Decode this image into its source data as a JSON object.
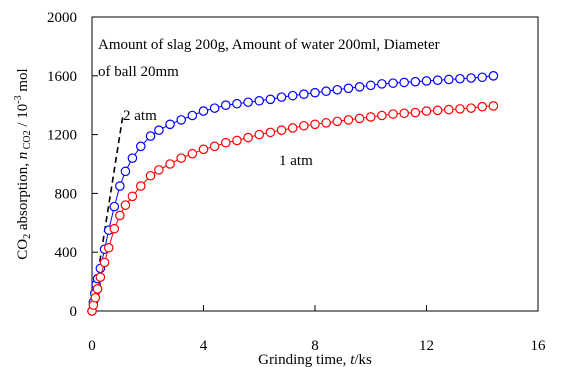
{
  "chart_data": {
    "type": "line",
    "title": "",
    "xlabel": "Grinding time, t/ks",
    "ylabel": "CO2 absorption, n CO2 / 10^-3 mol",
    "xlim": [
      0,
      16
    ],
    "ylim": [
      0,
      2000
    ],
    "x_ticks": [
      "0",
      "4",
      "8",
      "12",
      "16"
    ],
    "y_ticks": [
      "0",
      "400",
      "800",
      "1200",
      "1600",
      "2000"
    ],
    "grid": false,
    "annotations": {
      "conditions_line1": "Amount of slag 200g, Amount of water 200ml, Diameter",
      "conditions_line2": "of ball 20mm",
      "label_2atm": "2 atm",
      "label_1atm": "1 atm"
    },
    "series": [
      {
        "name": "2 atm",
        "color": "#0000ff",
        "x": [
          0,
          0.05,
          0.1,
          0.15,
          0.2,
          0.3,
          0.45,
          0.6,
          0.8,
          1.0,
          1.2,
          1.45,
          1.75,
          2.1,
          2.4,
          2.8,
          3.2,
          3.6,
          4.0,
          4.4,
          4.8,
          5.2,
          5.6,
          6.0,
          6.4,
          6.8,
          7.2,
          7.6,
          8.0,
          8.4,
          8.8,
          9.2,
          9.6,
          10.0,
          10.4,
          10.8,
          11.2,
          11.6,
          12.0,
          12.4,
          12.8,
          13.2,
          13.6,
          14.0,
          14.4
        ],
        "y": [
          0,
          60,
          120,
          180,
          220,
          290,
          420,
          550,
          710,
          850,
          950,
          1040,
          1120,
          1190,
          1230,
          1270,
          1300,
          1330,
          1360,
          1380,
          1400,
          1410,
          1420,
          1430,
          1440,
          1455,
          1465,
          1475,
          1485,
          1495,
          1505,
          1515,
          1525,
          1535,
          1545,
          1550,
          1555,
          1560,
          1565,
          1570,
          1575,
          1580,
          1585,
          1590,
          1600
        ]
      },
      {
        "name": "1 atm",
        "color": "#ff0000",
        "x": [
          0,
          0.05,
          0.12,
          0.2,
          0.3,
          0.45,
          0.6,
          0.8,
          1.0,
          1.2,
          1.45,
          1.75,
          2.1,
          2.4,
          2.8,
          3.2,
          3.6,
          4.0,
          4.4,
          4.8,
          5.2,
          5.6,
          6.0,
          6.4,
          6.8,
          7.2,
          7.6,
          8.0,
          8.4,
          8.8,
          9.2,
          9.6,
          10.0,
          10.4,
          10.8,
          11.2,
          11.6,
          12.0,
          12.4,
          12.8,
          13.2,
          13.6,
          14.0,
          14.4
        ],
        "y": [
          0,
          40,
          90,
          150,
          230,
          330,
          430,
          560,
          650,
          720,
          780,
          850,
          920,
          960,
          1000,
          1040,
          1070,
          1100,
          1120,
          1145,
          1160,
          1180,
          1200,
          1215,
          1230,
          1245,
          1260,
          1270,
          1280,
          1290,
          1300,
          1310,
          1320,
          1330,
          1340,
          1345,
          1350,
          1360,
          1365,
          1370,
          1375,
          1380,
          1390,
          1395
        ]
      }
    ],
    "reference_line": {
      "style": "dashed",
      "color": "#000000",
      "x": [
        0,
        1.1
      ],
      "y": [
        0,
        1320
      ]
    }
  }
}
